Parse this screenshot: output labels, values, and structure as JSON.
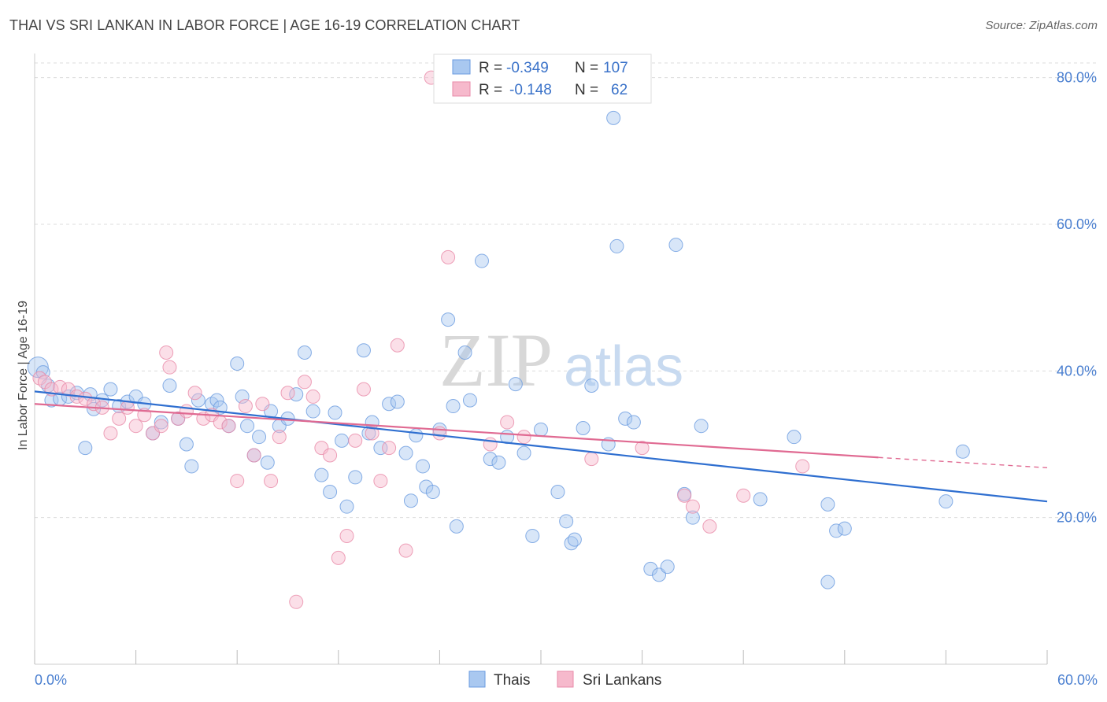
{
  "title": "THAI VS SRI LANKAN IN LABOR FORCE | AGE 16-19 CORRELATION CHART",
  "source": "Source: ZipAtlas.com",
  "watermark": {
    "zip": "ZIP",
    "atlas": "atlas"
  },
  "legend_box": {
    "rows": [
      {
        "r_label": "R = ",
        "r_value": "-0.349",
        "n_label": "N = ",
        "n_value": "107",
        "color": "#a9c8f0"
      },
      {
        "r_label": "R = ",
        "r_value": "-0.148",
        "n_label": "N = ",
        "n_value": "62",
        "color": "#f6b9cc"
      }
    ]
  },
  "bottom_legend": [
    {
      "label": "Thais",
      "color": "#a9c8f0"
    },
    {
      "label": "Sri Lankans",
      "color": "#f6b9cc"
    }
  ],
  "chart_data": {
    "type": "scatter",
    "title": "THAI VS SRI LANKAN IN LABOR FORCE | AGE 16-19 CORRELATION CHART",
    "xlabel": "",
    "ylabel": "In Labor Force | Age 16-19",
    "xlim": [
      0,
      60
    ],
    "ylim": [
      0,
      82
    ],
    "x_tick_labels": [
      "0.0%",
      "60.0%"
    ],
    "y_ticks": [
      20,
      40,
      60,
      80
    ],
    "y_tick_labels": [
      "20.0%",
      "40.0%",
      "60.0%",
      "80.0%"
    ],
    "grid": true,
    "legend_position": "top-center",
    "series": [
      {
        "name": "Thais",
        "color": "#6a9be0",
        "fill": "#a9c8f0",
        "trend": {
          "x0": 0,
          "y0": 37.2,
          "x1": 60,
          "y1": 22.2
        },
        "points": [
          [
            0.2,
            40.5
          ],
          [
            0.5,
            39.8
          ],
          [
            0.8,
            38
          ],
          [
            1,
            36
          ],
          [
            1.5,
            36.2
          ],
          [
            2,
            36.5
          ],
          [
            2.5,
            37
          ],
          [
            3,
            29.5
          ],
          [
            3.3,
            36.8
          ],
          [
            3.5,
            34.8
          ],
          [
            4,
            36
          ],
          [
            4.5,
            37.5
          ],
          [
            5,
            35.2
          ],
          [
            5.5,
            35.8
          ],
          [
            6,
            36.5
          ],
          [
            6.5,
            35.5
          ],
          [
            7,
            31.5
          ],
          [
            7.5,
            33
          ],
          [
            8,
            38
          ],
          [
            8.5,
            33.5
          ],
          [
            9,
            30
          ],
          [
            9.3,
            27
          ],
          [
            9.7,
            36
          ],
          [
            10.5,
            35.5
          ],
          [
            10.8,
            36
          ],
          [
            11,
            35
          ],
          [
            11.5,
            32.5
          ],
          [
            12,
            41
          ],
          [
            12.3,
            36.5
          ],
          [
            12.6,
            32.5
          ],
          [
            13,
            28.5
          ],
          [
            13.3,
            31
          ],
          [
            13.8,
            27.5
          ],
          [
            14,
            34.5
          ],
          [
            14.5,
            32.5
          ],
          [
            15,
            33.5
          ],
          [
            15.5,
            36.8
          ],
          [
            16,
            42.5
          ],
          [
            16.5,
            34.5
          ],
          [
            17,
            25.8
          ],
          [
            17.5,
            23.5
          ],
          [
            17.8,
            34.3
          ],
          [
            18.2,
            30.5
          ],
          [
            18.5,
            21.5
          ],
          [
            19,
            25.5
          ],
          [
            19.5,
            42.8
          ],
          [
            19.8,
            31.5
          ],
          [
            20,
            33
          ],
          [
            20.5,
            29.5
          ],
          [
            21,
            35.5
          ],
          [
            21.5,
            35.8
          ],
          [
            22,
            28.8
          ],
          [
            22.3,
            22.3
          ],
          [
            22.6,
            31.2
          ],
          [
            23,
            27
          ],
          [
            23.2,
            24.2
          ],
          [
            23.6,
            23.5
          ],
          [
            24,
            32
          ],
          [
            24.5,
            47
          ],
          [
            24.8,
            35.2
          ],
          [
            25,
            18.8
          ],
          [
            25.5,
            42.5
          ],
          [
            25.8,
            36
          ],
          [
            26.5,
            55
          ],
          [
            27,
            28
          ],
          [
            27.5,
            27.5
          ],
          [
            28,
            31
          ],
          [
            28.5,
            38.2
          ],
          [
            29,
            28.8
          ],
          [
            29.5,
            17.5
          ],
          [
            30,
            32
          ],
          [
            31,
            23.5
          ],
          [
            31.5,
            19.5
          ],
          [
            31.8,
            16.5
          ],
          [
            32,
            17
          ],
          [
            32.5,
            32.2
          ],
          [
            33,
            38
          ],
          [
            34,
            30
          ],
          [
            34.3,
            74.5
          ],
          [
            34.5,
            57
          ],
          [
            35,
            33.5
          ],
          [
            35.5,
            33
          ],
          [
            36.5,
            13
          ],
          [
            37,
            12.2
          ],
          [
            37.5,
            13.3
          ],
          [
            38,
            57.2
          ],
          [
            38.5,
            23.2
          ],
          [
            39,
            20
          ],
          [
            39.5,
            32.5
          ],
          [
            43,
            22.5
          ],
          [
            45,
            31
          ],
          [
            47,
            21.8
          ],
          [
            47.5,
            18.2
          ],
          [
            48,
            18.5
          ],
          [
            47,
            11.2
          ],
          [
            54,
            22.2
          ],
          [
            55,
            29
          ]
        ]
      },
      {
        "name": "Sri Lankans",
        "color": "#e88aa8",
        "fill": "#f6b9cc",
        "trend": {
          "x0": 0,
          "y0": 35.5,
          "x1": 50,
          "y1": 28.2
        },
        "trend_dashed_to": {
          "x": 60,
          "y": 26.8
        },
        "points": [
          [
            0.3,
            39
          ],
          [
            0.6,
            38.5
          ],
          [
            1,
            37.5
          ],
          [
            1.5,
            37.8
          ],
          [
            2,
            37.5
          ],
          [
            2.5,
            36.5
          ],
          [
            3,
            36.2
          ],
          [
            3.5,
            35.5
          ],
          [
            4,
            35
          ],
          [
            4.5,
            31.5
          ],
          [
            5,
            33.5
          ],
          [
            5.5,
            35
          ],
          [
            6,
            32.5
          ],
          [
            6.5,
            34
          ],
          [
            7,
            31.5
          ],
          [
            7.5,
            32.5
          ],
          [
            7.8,
            42.5
          ],
          [
            8,
            40.5
          ],
          [
            8.5,
            33.5
          ],
          [
            9,
            34.5
          ],
          [
            9.5,
            37
          ],
          [
            10,
            33.5
          ],
          [
            10.5,
            34
          ],
          [
            11,
            33
          ],
          [
            11.5,
            32.5
          ],
          [
            12,
            25
          ],
          [
            12.5,
            35.2
          ],
          [
            13,
            28.5
          ],
          [
            13.5,
            35.5
          ],
          [
            14,
            25
          ],
          [
            14.5,
            31
          ],
          [
            15,
            37
          ],
          [
            15.5,
            8.5
          ],
          [
            16,
            38.5
          ],
          [
            16.5,
            36.5
          ],
          [
            17,
            29.5
          ],
          [
            17.5,
            28.5
          ],
          [
            18,
            14.5
          ],
          [
            18.5,
            17.5
          ],
          [
            19,
            30.5
          ],
          [
            19.5,
            37.5
          ],
          [
            20,
            31.5
          ],
          [
            20.5,
            25
          ],
          [
            21,
            29.5
          ],
          [
            21.5,
            43.5
          ],
          [
            22,
            15.5
          ],
          [
            23.5,
            80
          ],
          [
            24,
            31.5
          ],
          [
            24.5,
            55.5
          ],
          [
            27,
            30
          ],
          [
            28,
            33
          ],
          [
            29,
            31
          ],
          [
            33,
            28
          ],
          [
            34,
            80
          ],
          [
            36,
            29.5
          ],
          [
            38.5,
            23
          ],
          [
            39,
            21.5
          ],
          [
            40,
            18.8
          ],
          [
            42,
            23
          ],
          [
            45.5,
            27
          ]
        ]
      }
    ]
  }
}
